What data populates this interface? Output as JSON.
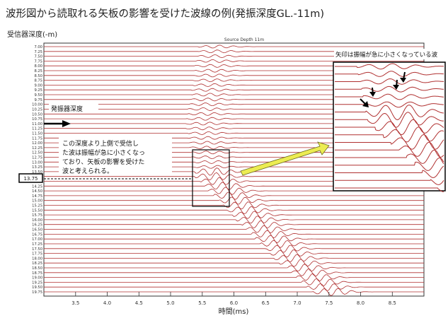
{
  "page_title": "波形図から読取れる矢板の影響を受けた波線の例(発振深度GL.-11m)",
  "chart_data": {
    "type": "line",
    "title": "Source Depth 11m",
    "ylabel": "受信器深度(-m)",
    "xlabel": "時間(ms)",
    "xlim": [
      3.0,
      9.0
    ],
    "x_ticks": [
      "3.5",
      "4.0",
      "4.5",
      "5.0",
      "5.5",
      "6.0",
      "6.5",
      "7.0",
      "7.5",
      "8.0",
      "8.5"
    ],
    "depth_start": 7.0,
    "depth_step": 0.25,
    "depth_count": 52,
    "depth_labels": [
      "7.00",
      "7.25",
      "7.50",
      "7.75",
      "8.00",
      "8.25",
      "8.50",
      "8.75",
      "9.00",
      "9.25",
      "9.50",
      "9.75",
      "10.00",
      "10.25",
      "10.50",
      "10.75",
      "11.00",
      "11.25",
      "11.50",
      "11.75",
      "12.00",
      "12.25",
      "12.50",
      "12.75",
      "13.00",
      "13.25",
      "13.50",
      "13.75",
      "14.00",
      "14.25",
      "14.50",
      "14.75",
      "15.00",
      "15.25",
      "15.50",
      "15.75",
      "16.00",
      "16.25",
      "16.50",
      "16.75",
      "17.00",
      "17.25",
      "17.50",
      "17.75",
      "18.00",
      "18.25",
      "18.50",
      "18.75",
      "19.00",
      "19.25",
      "19.50",
      "19.75"
    ],
    "trace_color": "#b03030",
    "grid": false,
    "first_arrival": [
      {
        "depth": 7.0,
        "time": 5.5
      },
      {
        "depth": 11.0,
        "time": 5.3
      },
      {
        "depth": 13.75,
        "time": 5.45
      },
      {
        "depth": 16.0,
        "time": 6.1
      },
      {
        "depth": 18.0,
        "time": 6.7
      },
      {
        "depth": 19.75,
        "time": 7.3
      }
    ],
    "annotations": {
      "source_label": "発振器深度",
      "note_lines": [
        "この深度より上側で受信し",
        "た波は振幅が急に小さくなっ",
        "ており、矢板の影響を受けた",
        "波と考えられる。"
      ],
      "inset_note": "矢印は振幅が急に小さくなっている波",
      "highlight_depth": "13.75"
    }
  }
}
